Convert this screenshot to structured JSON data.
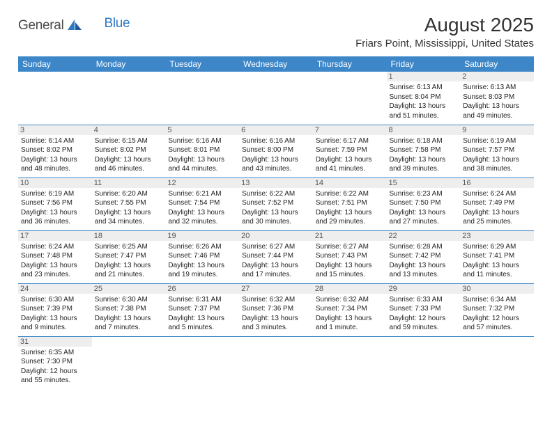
{
  "logo": {
    "brand_a": "General",
    "brand_b": "Blue"
  },
  "title": "August 2025",
  "location": "Friars Point, Mississippi, United States",
  "colors": {
    "header_bg": "#3d87c9",
    "header_text": "#ffffff",
    "daynum_bg": "#eeeeee",
    "row_divider": "#3d87c9",
    "logo_blue": "#2f78c4"
  },
  "weekdays": [
    "Sunday",
    "Monday",
    "Tuesday",
    "Wednesday",
    "Thursday",
    "Friday",
    "Saturday"
  ],
  "weeks": [
    [
      null,
      null,
      null,
      null,
      null,
      {
        "n": "1",
        "sr": "Sunrise: 6:13 AM",
        "ss": "Sunset: 8:04 PM",
        "d1": "Daylight: 13 hours",
        "d2": "and 51 minutes."
      },
      {
        "n": "2",
        "sr": "Sunrise: 6:13 AM",
        "ss": "Sunset: 8:03 PM",
        "d1": "Daylight: 13 hours",
        "d2": "and 49 minutes."
      }
    ],
    [
      {
        "n": "3",
        "sr": "Sunrise: 6:14 AM",
        "ss": "Sunset: 8:02 PM",
        "d1": "Daylight: 13 hours",
        "d2": "and 48 minutes."
      },
      {
        "n": "4",
        "sr": "Sunrise: 6:15 AM",
        "ss": "Sunset: 8:02 PM",
        "d1": "Daylight: 13 hours",
        "d2": "and 46 minutes."
      },
      {
        "n": "5",
        "sr": "Sunrise: 6:16 AM",
        "ss": "Sunset: 8:01 PM",
        "d1": "Daylight: 13 hours",
        "d2": "and 44 minutes."
      },
      {
        "n": "6",
        "sr": "Sunrise: 6:16 AM",
        "ss": "Sunset: 8:00 PM",
        "d1": "Daylight: 13 hours",
        "d2": "and 43 minutes."
      },
      {
        "n": "7",
        "sr": "Sunrise: 6:17 AM",
        "ss": "Sunset: 7:59 PM",
        "d1": "Daylight: 13 hours",
        "d2": "and 41 minutes."
      },
      {
        "n": "8",
        "sr": "Sunrise: 6:18 AM",
        "ss": "Sunset: 7:58 PM",
        "d1": "Daylight: 13 hours",
        "d2": "and 39 minutes."
      },
      {
        "n": "9",
        "sr": "Sunrise: 6:19 AM",
        "ss": "Sunset: 7:57 PM",
        "d1": "Daylight: 13 hours",
        "d2": "and 38 minutes."
      }
    ],
    [
      {
        "n": "10",
        "sr": "Sunrise: 6:19 AM",
        "ss": "Sunset: 7:56 PM",
        "d1": "Daylight: 13 hours",
        "d2": "and 36 minutes."
      },
      {
        "n": "11",
        "sr": "Sunrise: 6:20 AM",
        "ss": "Sunset: 7:55 PM",
        "d1": "Daylight: 13 hours",
        "d2": "and 34 minutes."
      },
      {
        "n": "12",
        "sr": "Sunrise: 6:21 AM",
        "ss": "Sunset: 7:54 PM",
        "d1": "Daylight: 13 hours",
        "d2": "and 32 minutes."
      },
      {
        "n": "13",
        "sr": "Sunrise: 6:22 AM",
        "ss": "Sunset: 7:52 PM",
        "d1": "Daylight: 13 hours",
        "d2": "and 30 minutes."
      },
      {
        "n": "14",
        "sr": "Sunrise: 6:22 AM",
        "ss": "Sunset: 7:51 PM",
        "d1": "Daylight: 13 hours",
        "d2": "and 29 minutes."
      },
      {
        "n": "15",
        "sr": "Sunrise: 6:23 AM",
        "ss": "Sunset: 7:50 PM",
        "d1": "Daylight: 13 hours",
        "d2": "and 27 minutes."
      },
      {
        "n": "16",
        "sr": "Sunrise: 6:24 AM",
        "ss": "Sunset: 7:49 PM",
        "d1": "Daylight: 13 hours",
        "d2": "and 25 minutes."
      }
    ],
    [
      {
        "n": "17",
        "sr": "Sunrise: 6:24 AM",
        "ss": "Sunset: 7:48 PM",
        "d1": "Daylight: 13 hours",
        "d2": "and 23 minutes."
      },
      {
        "n": "18",
        "sr": "Sunrise: 6:25 AM",
        "ss": "Sunset: 7:47 PM",
        "d1": "Daylight: 13 hours",
        "d2": "and 21 minutes."
      },
      {
        "n": "19",
        "sr": "Sunrise: 6:26 AM",
        "ss": "Sunset: 7:46 PM",
        "d1": "Daylight: 13 hours",
        "d2": "and 19 minutes."
      },
      {
        "n": "20",
        "sr": "Sunrise: 6:27 AM",
        "ss": "Sunset: 7:44 PM",
        "d1": "Daylight: 13 hours",
        "d2": "and 17 minutes."
      },
      {
        "n": "21",
        "sr": "Sunrise: 6:27 AM",
        "ss": "Sunset: 7:43 PM",
        "d1": "Daylight: 13 hours",
        "d2": "and 15 minutes."
      },
      {
        "n": "22",
        "sr": "Sunrise: 6:28 AM",
        "ss": "Sunset: 7:42 PM",
        "d1": "Daylight: 13 hours",
        "d2": "and 13 minutes."
      },
      {
        "n": "23",
        "sr": "Sunrise: 6:29 AM",
        "ss": "Sunset: 7:41 PM",
        "d1": "Daylight: 13 hours",
        "d2": "and 11 minutes."
      }
    ],
    [
      {
        "n": "24",
        "sr": "Sunrise: 6:30 AM",
        "ss": "Sunset: 7:39 PM",
        "d1": "Daylight: 13 hours",
        "d2": "and 9 minutes."
      },
      {
        "n": "25",
        "sr": "Sunrise: 6:30 AM",
        "ss": "Sunset: 7:38 PM",
        "d1": "Daylight: 13 hours",
        "d2": "and 7 minutes."
      },
      {
        "n": "26",
        "sr": "Sunrise: 6:31 AM",
        "ss": "Sunset: 7:37 PM",
        "d1": "Daylight: 13 hours",
        "d2": "and 5 minutes."
      },
      {
        "n": "27",
        "sr": "Sunrise: 6:32 AM",
        "ss": "Sunset: 7:36 PM",
        "d1": "Daylight: 13 hours",
        "d2": "and 3 minutes."
      },
      {
        "n": "28",
        "sr": "Sunrise: 6:32 AM",
        "ss": "Sunset: 7:34 PM",
        "d1": "Daylight: 13 hours",
        "d2": "and 1 minute."
      },
      {
        "n": "29",
        "sr": "Sunrise: 6:33 AM",
        "ss": "Sunset: 7:33 PM",
        "d1": "Daylight: 12 hours",
        "d2": "and 59 minutes."
      },
      {
        "n": "30",
        "sr": "Sunrise: 6:34 AM",
        "ss": "Sunset: 7:32 PM",
        "d1": "Daylight: 12 hours",
        "d2": "and 57 minutes."
      }
    ],
    [
      {
        "n": "31",
        "sr": "Sunrise: 6:35 AM",
        "ss": "Sunset: 7:30 PM",
        "d1": "Daylight: 12 hours",
        "d2": "and 55 minutes."
      },
      null,
      null,
      null,
      null,
      null,
      null
    ]
  ]
}
